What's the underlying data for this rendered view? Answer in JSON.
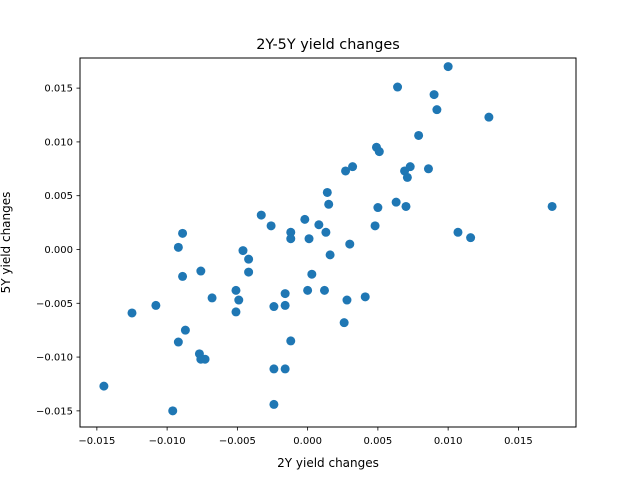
{
  "chart_data": {
    "type": "scatter",
    "title": "2Y-5Y yield changes",
    "xlabel": "2Y yield changes",
    "ylabel": "5Y yield changes",
    "xlim": [
      -0.0162,
      0.0191
    ],
    "ylim": [
      -0.0165,
      0.0178
    ],
    "xticks": [
      -0.015,
      -0.01,
      -0.005,
      0.0,
      0.005,
      0.01,
      0.015
    ],
    "xtick_labels": [
      "−0.015",
      "−0.010",
      "−0.005",
      "0.000",
      "0.005",
      "0.010",
      "0.015"
    ],
    "yticks": [
      -0.015,
      -0.01,
      -0.005,
      0.0,
      0.005,
      0.01,
      0.015
    ],
    "ytick_labels": [
      "−0.015",
      "−0.010",
      "−0.005",
      "0.000",
      "0.005",
      "0.010",
      "0.015"
    ],
    "grid": false,
    "marker_color": "#1f77b4",
    "x": [
      -0.0145,
      -0.0125,
      -0.0108,
      -0.0096,
      -0.0092,
      -0.0092,
      -0.0089,
      -0.0089,
      -0.0087,
      -0.0077,
      -0.0076,
      -0.0076,
      -0.0073,
      -0.0068,
      -0.0051,
      -0.0051,
      -0.0049,
      -0.0046,
      -0.0042,
      -0.0042,
      -0.0033,
      -0.0026,
      -0.0024,
      -0.0024,
      -0.0024,
      -0.0016,
      -0.0016,
      -0.0016,
      -0.0012,
      -0.0012,
      -0.0012,
      -0.0002,
      0.0,
      0.0001,
      0.0003,
      0.0008,
      0.0012,
      0.0013,
      0.0014,
      0.0015,
      0.0016,
      0.0026,
      0.0027,
      0.0028,
      0.003,
      0.0032,
      0.0041,
      0.0048,
      0.0049,
      0.005,
      0.0051,
      0.0063,
      0.0064,
      0.0069,
      0.007,
      0.0071,
      0.0073,
      0.0079,
      0.0086,
      0.009,
      0.0092,
      0.01,
      0.0107,
      0.0116,
      0.0129,
      0.0174
    ],
    "y": [
      -0.0127,
      -0.0059,
      -0.0052,
      -0.015,
      0.0002,
      -0.0086,
      0.0015,
      -0.0025,
      -0.0075,
      -0.0097,
      -0.002,
      -0.0102,
      -0.0102,
      -0.0045,
      -0.0038,
      -0.0058,
      -0.0047,
      -0.0001,
      -0.0009,
      -0.0021,
      0.0032,
      0.0022,
      -0.0053,
      -0.0111,
      -0.0144,
      -0.0041,
      -0.0052,
      -0.0111,
      0.0016,
      0.001,
      -0.0085,
      0.0028,
      -0.0038,
      0.001,
      -0.0023,
      0.0023,
      -0.0038,
      0.0016,
      0.0053,
      0.0042,
      -0.0005,
      -0.0068,
      0.0073,
      -0.0047,
      0.0005,
      0.0077,
      -0.0044,
      0.0022,
      0.0095,
      0.0039,
      0.0091,
      0.0044,
      0.0151,
      0.0073,
      0.004,
      0.0067,
      0.0077,
      0.0106,
      0.0075,
      0.0144,
      0.013,
      0.017,
      0.0016,
      0.0011,
      0.0123,
      0.004
    ]
  }
}
